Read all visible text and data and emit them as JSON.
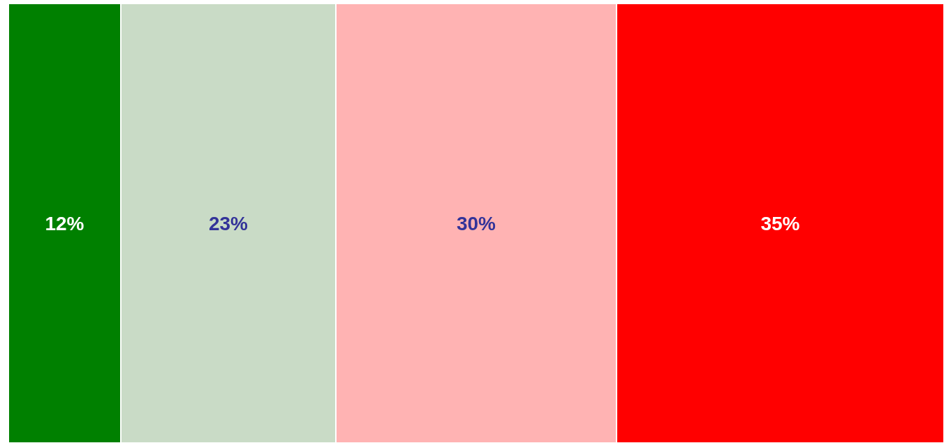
{
  "chart_data": {
    "type": "bar",
    "orientation": "horizontal",
    "stacked": true,
    "categories": [
      null
    ],
    "series": [
      {
        "color": "#008000",
        "values": [
          12
        ],
        "value_labels": [
          "12%"
        ]
      },
      {
        "color": "#c9dbc6",
        "values": [
          23
        ],
        "value_labels": [
          "23%"
        ]
      },
      {
        "color": "#ffb3b3",
        "values": [
          30
        ],
        "value_labels": [
          "30%"
        ]
      },
      {
        "color": "#ff0000",
        "values": [
          35
        ],
        "value_labels": [
          "35%"
        ]
      }
    ],
    "xlim": [
      0,
      100
    ]
  }
}
